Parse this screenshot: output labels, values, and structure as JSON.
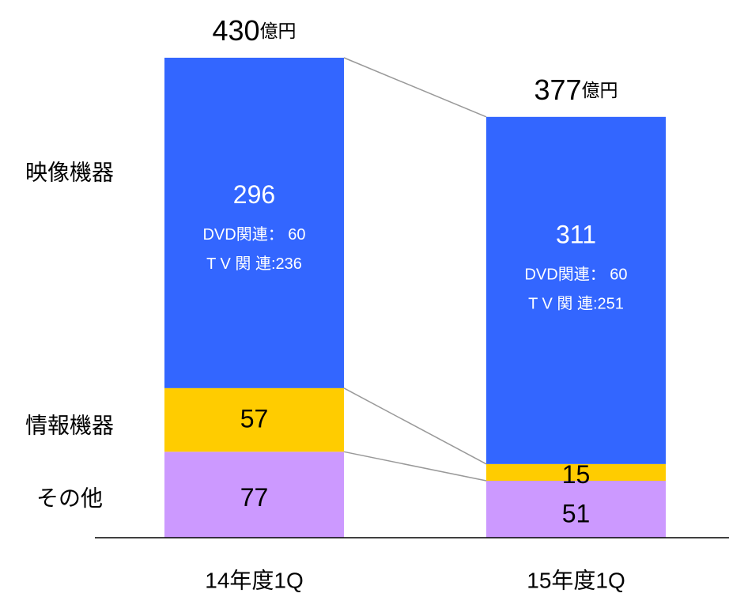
{
  "chart_data": {
    "type": "bar",
    "stacked": true,
    "categories": [
      "14年度1Q",
      "15年度1Q"
    ],
    "series": [
      {
        "name": "その他",
        "color": "#cc99ff",
        "values": [
          77,
          51
        ]
      },
      {
        "name": "情報機器",
        "color": "#ffcc00",
        "values": [
          57,
          15
        ]
      },
      {
        "name": "映像機器",
        "color": "#3366ff",
        "values": [
          296,
          311
        ]
      }
    ],
    "totals": {
      "values": [
        430,
        377
      ],
      "unit": "億円"
    },
    "annotations": [
      [
        "DVD関連： 60",
        "T V 関 連:236"
      ],
      [
        "DVD関連： 60",
        "T V 関 連:251"
      ]
    ]
  }
}
